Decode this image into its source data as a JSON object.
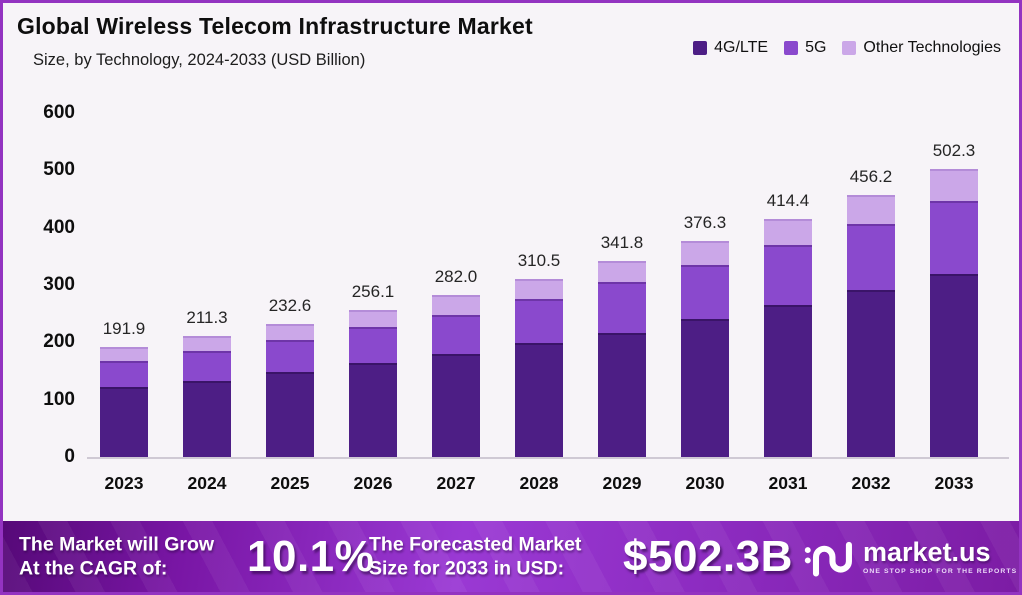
{
  "header": {
    "title": "Global Wireless Telecom Infrastructure Market",
    "subtitle": "Size, by Technology, 2024-2033 (USD Billion)"
  },
  "legend": {
    "items": [
      {
        "label": "4G/LTE",
        "color": "#4D1E85"
      },
      {
        "label": "5G",
        "color": "#8A49CD"
      },
      {
        "label": "Other Technologies",
        "color": "#CBA7E8"
      }
    ]
  },
  "chart_data": {
    "type": "bar",
    "stacked": true,
    "title": "Global Wireless Telecom Infrastructure Market Size, by Technology, 2024-2033 (USD Billion)",
    "categories": [
      "2023",
      "2024",
      "2025",
      "2026",
      "2027",
      "2028",
      "2029",
      "2030",
      "2031",
      "2032",
      "2033"
    ],
    "series": [
      {
        "name": "4G/LTE",
        "color": "#4D1E85",
        "edge": "#3A1468",
        "values": [
          122.0,
          133.0,
          149.0,
          163.5,
          180.0,
          198.0,
          217.0,
          240.0,
          265.0,
          291.0,
          320.0
        ],
        "estimated_from_pixels": true
      },
      {
        "name": "5G",
        "color": "#8A49CD",
        "edge": "#6E35A8",
        "values": [
          45.0,
          52.0,
          55.0,
          64.0,
          68.0,
          77.0,
          89.0,
          95.0,
          104.0,
          115.0,
          126.7
        ],
        "estimated_from_pixels": true
      },
      {
        "name": "Other Technologies",
        "color": "#CBA7E8",
        "edge": "#B48CD8",
        "values": [
          24.9,
          26.3,
          28.6,
          28.6,
          34.0,
          35.5,
          35.8,
          41.3,
          45.4,
          50.2,
          55.6
        ],
        "estimated_from_pixels": true
      }
    ],
    "totals": [
      191.9,
      211.3,
      232.6,
      256.1,
      282.0,
      310.5,
      341.8,
      376.3,
      414.4,
      456.2,
      502.3
    ],
    "total_labels": [
      "191.9",
      "211.3",
      "232.6",
      "256.1",
      "282.0",
      "310.5",
      "341.8",
      "376.3",
      "414.4",
      "456.2",
      "502.3"
    ],
    "yticks": [
      0,
      100,
      200,
      300,
      400,
      500,
      600
    ],
    "ylim": [
      0,
      600
    ],
    "grid": false,
    "legend_position": "top-right"
  },
  "banner": {
    "cagr_text_line1": "The Market will Grow",
    "cagr_text_line2": "At the CAGR of:",
    "cagr_value": "10.1%",
    "forecast_text_line1": "The Forecasted Market",
    "forecast_text_line2": "Size for 2033 in USD:",
    "forecast_value": "$502.3B",
    "logo_text": "market.us",
    "logo_tagline": "ONE STOP SHOP FOR THE REPORTS"
  },
  "colors": {
    "background": "#F7F4F8",
    "frame_border": "#9333C1",
    "banner_gradient": [
      "#560978",
      "#7916A5",
      "#9A39D4",
      "#8C2BC0",
      "#7C1CA4"
    ],
    "axis_line": "#CFC9D4",
    "text": "#111111"
  }
}
